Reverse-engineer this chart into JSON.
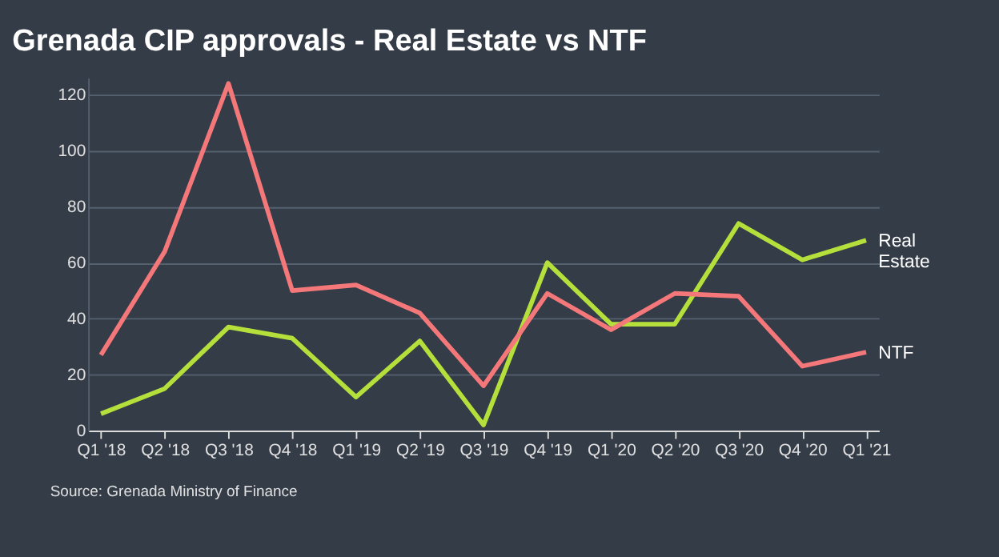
{
  "chart_data": {
    "type": "line",
    "title": "Grenada CIP approvals - Real Estate vs NTF",
    "categories": [
      "Q1 '18",
      "Q2 '18",
      "Q3 '18",
      "Q4 '18",
      "Q1 '19",
      "Q2 '19",
      "Q3 '19",
      "Q4 '19",
      "Q1 '20",
      "Q2 '20",
      "Q3 '20",
      "Q4 '20",
      "Q1 '21"
    ],
    "series": [
      {
        "name": "Real Estate",
        "color": "#b5e03c",
        "values": [
          6,
          15,
          37,
          33,
          12,
          32,
          2,
          60,
          38,
          38,
          74,
          61,
          68
        ]
      },
      {
        "name": "NTF",
        "color": "#f4777a",
        "values": [
          27,
          64,
          124,
          50,
          52,
          42,
          16,
          49,
          36,
          49,
          48,
          23,
          28
        ]
      }
    ],
    "ylim": [
      0,
      126
    ],
    "yticks": [
      0,
      20,
      40,
      60,
      80,
      100,
      120
    ],
    "grid": "y",
    "marker": "none",
    "line_style": "solid",
    "annotations": [
      "Source: Grenada Ministry of Finance"
    ]
  }
}
